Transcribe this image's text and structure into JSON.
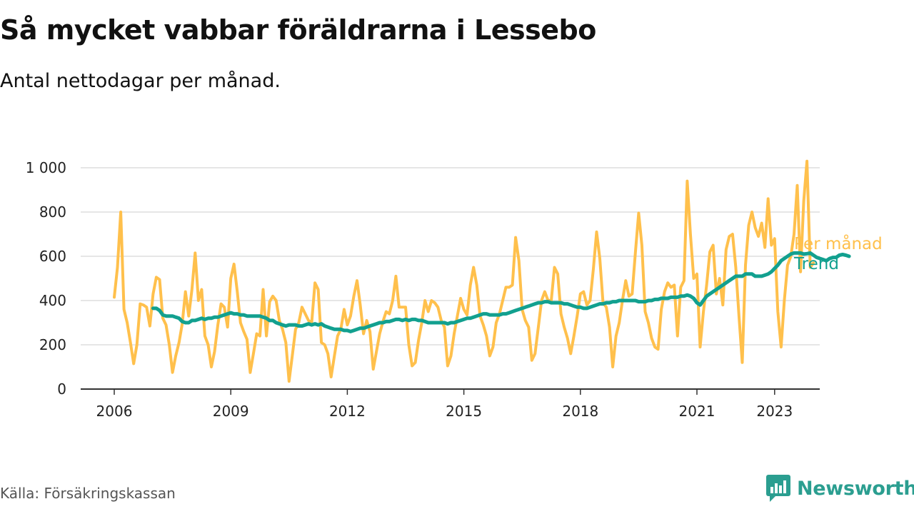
{
  "header": {
    "title": "Så mycket vabbar föräldrarna i Lessebo",
    "subtitle": "Antal nettodagar per månad."
  },
  "footer": {
    "source": "Källa: Försäkringskassan",
    "brand": "Newsworthy",
    "brand_icon": "newsworthy-logo-icon"
  },
  "colors": {
    "per_month": "#ffc04c",
    "trend": "#12a08f",
    "grid": "#dddddd",
    "axis": "#333333"
  },
  "chart_data": {
    "type": "line",
    "title": "Så mycket vabbar föräldrarna i Lessebo",
    "subtitle": "Antal nettodagar per månad.",
    "xlabel": "",
    "ylabel": "",
    "ylim": [
      0,
      1000
    ],
    "yticks": [
      0,
      200,
      400,
      600,
      800,
      1000
    ],
    "ytick_labels": [
      "0",
      "200",
      "400",
      "600",
      "800",
      "1 000"
    ],
    "xlim": [
      2006.0,
      2023.25
    ],
    "x_axis_range": [
      "2005-11",
      "2024-06"
    ],
    "xticks": [
      2006,
      2009,
      2012,
      2015,
      2018,
      2021,
      2023
    ],
    "xtick_labels": [
      "2006",
      "2009",
      "2012",
      "2015",
      "2018",
      "2021",
      "2023"
    ],
    "grid": true,
    "legend": "inline-right",
    "x_start": "2006-01",
    "x_step": "month",
    "series": [
      {
        "name": "Per månad",
        "start": "2006-01",
        "values": [
          415,
          550,
          800,
          360,
          300,
          210,
          115,
          200,
          385,
          380,
          370,
          285,
          430,
          505,
          495,
          320,
          290,
          200,
          75,
          150,
          210,
          295,
          440,
          330,
          450,
          615,
          400,
          450,
          240,
          200,
          100,
          170,
          290,
          385,
          370,
          280,
          500,
          565,
          440,
          300,
          260,
          225,
          75,
          160,
          250,
          240,
          450,
          240,
          395,
          420,
          400,
          310,
          270,
          210,
          35,
          150,
          270,
          300,
          370,
          340,
          310,
          300,
          480,
          450,
          210,
          200,
          160,
          55,
          150,
          240,
          270,
          360,
          290,
          330,
          420,
          490,
          380,
          250,
          310,
          260,
          90,
          170,
          250,
          305,
          350,
          340,
          400,
          510,
          370,
          370,
          370,
          200,
          105,
          120,
          220,
          300,
          400,
          350,
          400,
          390,
          370,
          310,
          280,
          105,
          150,
          250,
          330,
          410,
          360,
          335,
          470,
          550,
          470,
          330,
          290,
          240,
          150,
          190,
          300,
          340,
          400,
          460,
          460,
          470,
          685,
          580,
          360,
          310,
          280,
          130,
          160,
          280,
          400,
          440,
          400,
          400,
          550,
          520,
          340,
          280,
          230,
          160,
          240,
          330,
          430,
          440,
          380,
          400,
          540,
          710,
          590,
          390,
          370,
          280,
          100,
          240,
          300,
          400,
          490,
          420,
          430,
          620,
          795,
          650,
          350,
          300,
          230,
          190,
          180,
          360,
          440,
          480,
          460,
          470,
          240,
          460,
          490,
          940,
          700,
          500,
          520,
          190,
          350,
          470,
          620,
          650,
          430,
          500,
          380,
          630,
          690,
          700,
          550,
          330,
          120,
          560,
          740,
          800,
          730,
          690,
          750,
          640,
          860,
          650,
          680,
          350,
          190,
          400,
          560,
          600,
          700,
          920,
          530,
          850,
          1030,
          550,
          570
        ]
      },
      {
        "name": "Trend",
        "start": "2007-01",
        "values": [
          365,
          365,
          355,
          335,
          330,
          330,
          330,
          325,
          320,
          305,
          300,
          300,
          310,
          310,
          315,
          320,
          315,
          320,
          320,
          325,
          325,
          330,
          335,
          340,
          345,
          340,
          340,
          335,
          335,
          330,
          330,
          330,
          330,
          330,
          325,
          320,
          310,
          310,
          300,
          295,
          290,
          285,
          290,
          290,
          290,
          285,
          285,
          290,
          295,
          290,
          295,
          290,
          295,
          285,
          280,
          275,
          270,
          270,
          270,
          265,
          265,
          260,
          265,
          270,
          275,
          275,
          280,
          285,
          290,
          295,
          300,
          300,
          305,
          305,
          310,
          315,
          315,
          310,
          315,
          310,
          315,
          315,
          310,
          310,
          305,
          300,
          300,
          300,
          300,
          300,
          300,
          295,
          300,
          300,
          305,
          310,
          315,
          320,
          320,
          325,
          330,
          335,
          340,
          340,
          335,
          335,
          335,
          335,
          340,
          340,
          345,
          350,
          355,
          360,
          365,
          370,
          375,
          380,
          385,
          390,
          390,
          395,
          395,
          390,
          390,
          390,
          390,
          385,
          385,
          380,
          375,
          370,
          370,
          365,
          365,
          370,
          375,
          380,
          385,
          385,
          390,
          390,
          395,
          395,
          400,
          400,
          400,
          400,
          400,
          400,
          395,
          395,
          395,
          400,
          400,
          405,
          405,
          410,
          410,
          410,
          415,
          415,
          415,
          420,
          420,
          425,
          420,
          410,
          390,
          380,
          400,
          420,
          430,
          440,
          450,
          460,
          470,
          480,
          490,
          500,
          510,
          510,
          510,
          520,
          520,
          520,
          510,
          510,
          510,
          515,
          520,
          530,
          545,
          560,
          580,
          590,
          600,
          610,
          615,
          615,
          615,
          610,
          612,
          615,
          605,
          595,
          590,
          585,
          580,
          590,
          595,
          595,
          605,
          608,
          605,
          600
        ]
      }
    ]
  }
}
